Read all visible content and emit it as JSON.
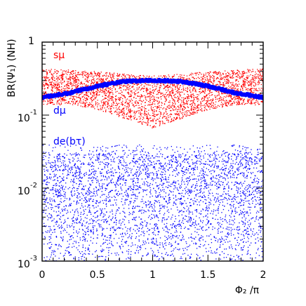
{
  "chart_data": {
    "type": "scatter",
    "title": "",
    "xlabel": "Φ₂ /π",
    "ylabel": "BR(Ψ₁) (NH)",
    "xlim": [
      0,
      2
    ],
    "ylim": [
      0.001,
      1
    ],
    "yscale": "log",
    "grid": false,
    "xticks": [
      0,
      0.5,
      1,
      1.5,
      2
    ],
    "xtick_labels": [
      "0",
      "0.5",
      "1",
      "1.5",
      "2"
    ],
    "yticks": [
      0.001,
      0.01,
      0.1,
      1
    ],
    "ytick_labels": [
      {
        "base": "10",
        "exp": "-3"
      },
      {
        "base": "10",
        "exp": "-2"
      },
      {
        "base": "10",
        "exp": "-1"
      },
      {
        "base": "1",
        "exp": ""
      }
    ],
    "annotations": [
      {
        "text": "sμ",
        "color": "#ff0000",
        "x": 0.13,
        "y": 0.55
      },
      {
        "text": "dμ",
        "color": "#0000ff",
        "x": 0.13,
        "y": 0.105
      },
      {
        "text": "de(bτ)",
        "color": "#0000ff",
        "x": 0.13,
        "y": 0.036
      }
    ],
    "series": [
      {
        "label": "sμ",
        "color": "#ff0000",
        "kind": "band",
        "x": [
          0,
          0.25,
          0.5,
          0.75,
          1.0,
          1.25,
          1.5,
          1.75,
          2.0
        ],
        "upper": [
          0.44,
          0.42,
          0.4,
          0.37,
          0.35,
          0.37,
          0.4,
          0.42,
          0.44
        ],
        "lower": [
          0.14,
          0.14,
          0.12,
          0.09,
          0.067,
          0.09,
          0.12,
          0.14,
          0.14
        ]
      },
      {
        "label": "dμ",
        "color": "#0000ff",
        "kind": "curve",
        "x": [
          0,
          0.25,
          0.5,
          0.75,
          1.0,
          1.25,
          1.5,
          1.75,
          2.0
        ],
        "y": [
          0.175,
          0.2,
          0.25,
          0.29,
          0.3,
          0.29,
          0.25,
          0.2,
          0.175
        ]
      },
      {
        "label": "de(bτ)",
        "color": "#0000ff",
        "kind": "scatter-band",
        "x": [
          0,
          2
        ],
        "upper": [
          0.03,
          0.03
        ],
        "lower": [
          0.001,
          0.001
        ]
      }
    ]
  }
}
